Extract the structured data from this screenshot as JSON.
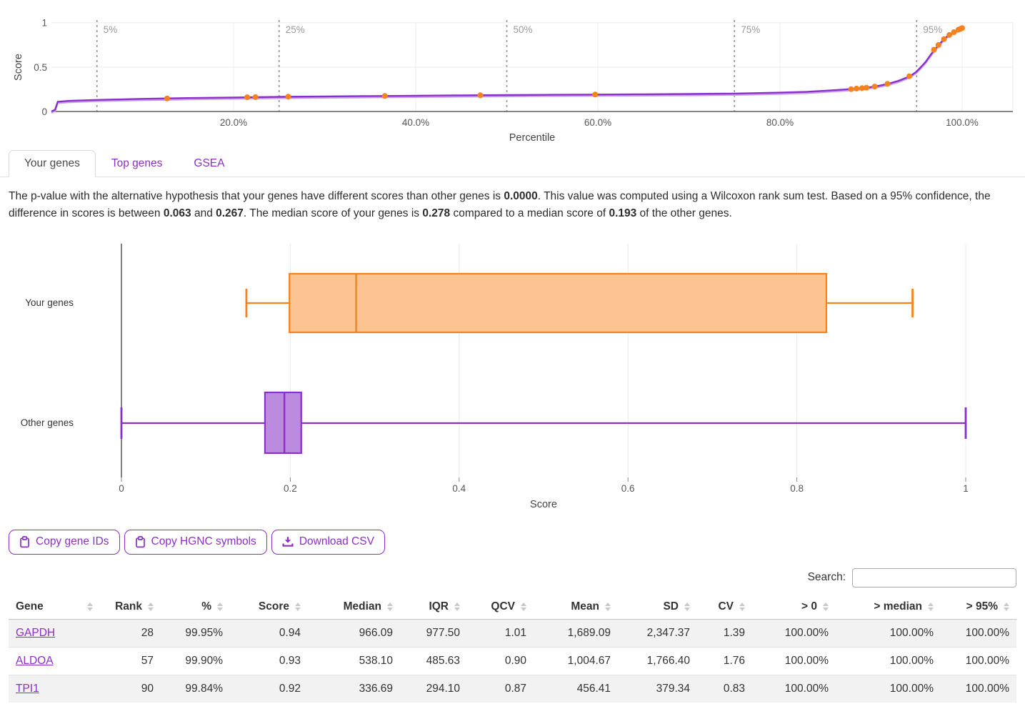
{
  "tabs": [
    {
      "label": "Your genes",
      "active": true
    },
    {
      "label": "Top genes",
      "active": false
    },
    {
      "label": "GSEA",
      "active": false
    }
  ],
  "summary": {
    "segments": [
      {
        "text": "The p-value with the alternative hypothesis that your genes have different scores than other genes is ",
        "bold": false
      },
      {
        "text": "0.0000",
        "bold": true
      },
      {
        "text": ". This value was computed using a Wilcoxon rank sum test. Based on a 95% confidence, the difference in scores is between ",
        "bold": false
      },
      {
        "text": "0.063",
        "bold": true
      },
      {
        "text": " and ",
        "bold": false
      },
      {
        "text": "0.267",
        "bold": true
      },
      {
        "text": ". The median score of your genes is ",
        "bold": false
      },
      {
        "text": "0.278",
        "bold": true
      },
      {
        "text": " compared to a median score of ",
        "bold": false
      },
      {
        "text": "0.193",
        "bold": true
      },
      {
        "text": " of the other genes.",
        "bold": false
      }
    ]
  },
  "toolbar": {
    "buttons": [
      {
        "label": "Copy gene IDs",
        "icon": "clipboard-icon"
      },
      {
        "label": "Copy HGNC symbols",
        "icon": "clipboard-icon"
      },
      {
        "label": "Download CSV",
        "icon": "download-icon"
      }
    ]
  },
  "search": {
    "label": "Search:",
    "value": ""
  },
  "table": {
    "columns": [
      "Gene",
      "Rank",
      "%",
      "Score",
      "Median",
      "IQR",
      "QCV",
      "Mean",
      "SD",
      "CV",
      "> 0",
      "> median",
      "> 95%"
    ],
    "rows": [
      [
        "GAPDH",
        "28",
        "99.95%",
        "0.94",
        "966.09",
        "977.50",
        "1.01",
        "1,689.09",
        "2,347.37",
        "1.39",
        "100.00%",
        "100.00%",
        "100.00%"
      ],
      [
        "ALDOA",
        "57",
        "99.90%",
        "0.93",
        "538.10",
        "485.63",
        "0.90",
        "1,004.67",
        "1,766.40",
        "1.76",
        "100.00%",
        "100.00%",
        "100.00%"
      ],
      [
        "TPI1",
        "90",
        "99.84%",
        "0.92",
        "336.69",
        "294.10",
        "0.87",
        "456.41",
        "379.34",
        "0.83",
        "100.00%",
        "100.00%",
        "100.00%"
      ]
    ]
  },
  "colors": {
    "purple": "#8B2FC9",
    "purple_light": "#C9A2EA",
    "purple_fill": "#BC8BE0",
    "orange": "#F5821F",
    "orange_fill": "#FBC492",
    "grid": "#ececec",
    "axis": "#3c3c3c",
    "marker_gray": "#9a9a9a",
    "tick_text": "#555555"
  },
  "chart_data": [
    {
      "type": "line",
      "title": "",
      "xlabel": "Percentile",
      "ylabel": "Score",
      "xlim": [
        0,
        105.5
      ],
      "ylim": [
        0,
        1
      ],
      "x_tick_values": [
        20,
        40,
        60,
        80,
        100
      ],
      "x_tick_labels": [
        "20.0%",
        "40.0%",
        "60.0%",
        "80.0%",
        "100.0%"
      ],
      "y_tick_values": [
        0,
        0.5,
        1
      ],
      "y_tick_labels": [
        "0",
        "0.5",
        "1"
      ],
      "grid": true,
      "percentile_markers": [
        {
          "label": "5%",
          "value": 5
        },
        {
          "label": "25%",
          "value": 25
        },
        {
          "label": "50%",
          "value": 50
        },
        {
          "label": "75%",
          "value": 75
        },
        {
          "label": "95%",
          "value": 95
        }
      ],
      "series": [
        {
          "name": "score-distribution-curve",
          "type": "line",
          "color": "#8B2FC9",
          "points": [
            [
              0,
              0
            ],
            [
              0.4,
              0.02
            ],
            [
              0.7,
              0.11
            ],
            [
              2,
              0.12
            ],
            [
              5,
              0.13
            ],
            [
              10,
              0.142
            ],
            [
              15,
              0.151
            ],
            [
              20,
              0.158
            ],
            [
              25,
              0.165
            ],
            [
              30,
              0.17
            ],
            [
              35,
              0.174
            ],
            [
              40,
              0.178
            ],
            [
              45,
              0.182
            ],
            [
              50,
              0.185
            ],
            [
              55,
              0.188
            ],
            [
              60,
              0.191
            ],
            [
              65,
              0.194
            ],
            [
              70,
              0.197
            ],
            [
              75,
              0.202
            ],
            [
              80,
              0.212
            ],
            [
              83,
              0.222
            ],
            [
              85,
              0.234
            ],
            [
              87,
              0.247
            ],
            [
              88,
              0.255
            ],
            [
              89,
              0.263
            ],
            [
              90,
              0.275
            ],
            [
              91,
              0.292
            ],
            [
              92,
              0.315
            ],
            [
              93,
              0.345
            ],
            [
              94,
              0.385
            ],
            [
              94.5,
              0.413
            ],
            [
              95,
              0.45
            ],
            [
              95.5,
              0.503
            ],
            [
              96,
              0.56
            ],
            [
              96.5,
              0.632
            ],
            [
              97,
              0.7
            ],
            [
              97.5,
              0.757
            ],
            [
              98,
              0.815
            ],
            [
              98.5,
              0.858
            ],
            [
              99,
              0.89
            ],
            [
              99.3,
              0.905
            ],
            [
              99.6,
              0.921
            ],
            [
              100,
              0.94
            ]
          ]
        },
        {
          "name": "your-genes-points",
          "type": "scatter",
          "color": "#F5821F",
          "points": [
            [
              12.7,
              0.147
            ],
            [
              21.5,
              0.16
            ],
            [
              22.4,
              0.162
            ],
            [
              26.0,
              0.167
            ],
            [
              36.6,
              0.175
            ],
            [
              47.1,
              0.183
            ],
            [
              59.7,
              0.191
            ],
            [
              87.8,
              0.252
            ],
            [
              88.4,
              0.258
            ],
            [
              89.0,
              0.263
            ],
            [
              89.5,
              0.268
            ],
            [
              90.4,
              0.281
            ],
            [
              91.8,
              0.312
            ],
            [
              94.2,
              0.397
            ],
            [
              96.9,
              0.695
            ],
            [
              97.4,
              0.748
            ],
            [
              98.0,
              0.815
            ],
            [
              98.6,
              0.862
            ],
            [
              99.1,
              0.893
            ],
            [
              99.6,
              0.921
            ],
            [
              99.8,
              0.929
            ],
            [
              100,
              0.94
            ]
          ]
        }
      ]
    },
    {
      "type": "boxplot",
      "title": "",
      "xlabel": "Score",
      "xlim": [
        0,
        1
      ],
      "x_tick_values": [
        0,
        0.2,
        0.4,
        0.6,
        0.8,
        1
      ],
      "x_tick_labels": [
        "0",
        "0.2",
        "0.4",
        "0.6",
        "0.8",
        "1"
      ],
      "grid": true,
      "series": [
        {
          "name": "Your genes",
          "color": "#F5821F",
          "fill": "#FBC492",
          "whisker_low": 0.148,
          "q1": 0.199,
          "median": 0.278,
          "q3": 0.835,
          "whisker_high": 0.937
        },
        {
          "name": "Other genes",
          "color": "#8B2FC9",
          "fill": "#BC8BE0",
          "whisker_low": 0.0,
          "q1": 0.17,
          "median": 0.193,
          "q3": 0.213,
          "whisker_high": 1.0
        }
      ]
    }
  ]
}
